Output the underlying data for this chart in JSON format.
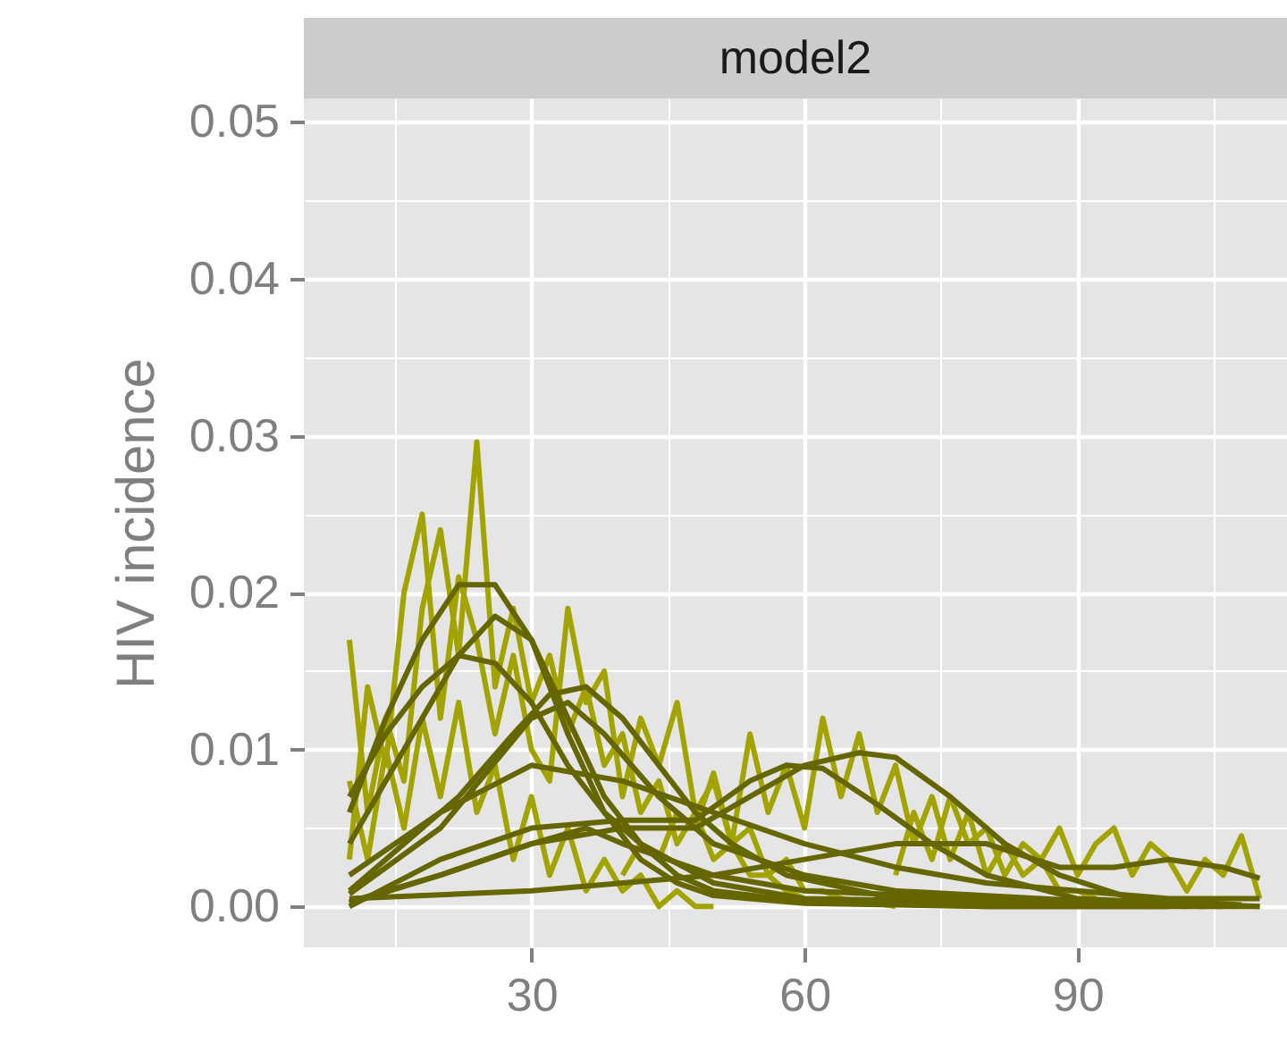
{
  "chart_data": {
    "type": "line",
    "title": "model2",
    "ylabel": "HIV incidence",
    "xlim": [
      5,
      113
    ],
    "ylim": [
      -0.0026,
      0.0515
    ],
    "xticks": [
      {
        "value": 15,
        "label": null
      },
      30,
      {
        "value": 45,
        "label": null
      },
      60,
      {
        "value": 75,
        "label": null
      },
      90,
      {
        "value": 105,
        "label": null
      }
    ],
    "yticks": [
      {
        "value": 0,
        "label": "0.00"
      },
      {
        "value": 0.005,
        "label": null
      },
      {
        "value": 0.01,
        "label": "0.01"
      },
      {
        "value": 0.015,
        "label": null
      },
      {
        "value": 0.02,
        "label": "0.02"
      },
      {
        "value": 0.025,
        "label": null
      },
      {
        "value": 0.03,
        "label": "0.03"
      },
      {
        "value": 0.035,
        "label": null
      },
      {
        "value": 0.04,
        "label": "0.04"
      },
      {
        "value": 0.045,
        "label": null
      },
      {
        "value": 0.05,
        "label": "0.05"
      }
    ],
    "grid": true,
    "legend": false,
    "line_style": "solid",
    "marker": "none",
    "series": [
      {
        "color": "#a3a300",
        "x": [
          10,
          12,
          14,
          16,
          18,
          20,
          22,
          24,
          26,
          28,
          30,
          32,
          34,
          36,
          38,
          40,
          42,
          44,
          46,
          48,
          50,
          52,
          54,
          56,
          58,
          60
        ],
        "values": [
          0.017,
          0.006,
          0.012,
          0.008,
          0.019,
          0.024,
          0.016,
          0.0296,
          0.014,
          0.019,
          0.013,
          0.016,
          0.011,
          0.014,
          0.009,
          0.011,
          0.006,
          0.008,
          0.004,
          0.006,
          0.003,
          0.004,
          0.002,
          0.002,
          0.001,
          0.0005
        ]
      },
      {
        "color": "#a3a300",
        "x": [
          10,
          12,
          14,
          16,
          18,
          20,
          22,
          24,
          26,
          28,
          30,
          32,
          34,
          36,
          38,
          40,
          42,
          44,
          46,
          48,
          50,
          52,
          54,
          56,
          58,
          60,
          62,
          64,
          66,
          68,
          70
        ],
        "values": [
          0.003,
          0.014,
          0.009,
          0.02,
          0.025,
          0.012,
          0.021,
          0.017,
          0.011,
          0.016,
          0.01,
          0.008,
          0.019,
          0.013,
          0.015,
          0.007,
          0.012,
          0.009,
          0.013,
          0.006,
          0.008,
          0.004,
          0.005,
          0.002,
          0.003,
          0.001,
          0.001,
          0.0005,
          0.0003,
          0.0002,
          0
        ]
      },
      {
        "color": "#a3a300",
        "x": [
          40,
          42,
          44,
          46,
          48,
          50,
          52,
          54,
          56,
          58,
          60,
          62,
          64,
          66,
          68,
          70,
          72,
          74,
          76,
          78,
          80,
          82,
          84,
          86,
          88,
          90,
          92
        ],
        "values": [
          0.002,
          0.004,
          0.003,
          0.006,
          0.005,
          0.0085,
          0.004,
          0.011,
          0.006,
          0.009,
          0.005,
          0.012,
          0.007,
          0.011,
          0.006,
          0.009,
          0.004,
          0.007,
          0.003,
          0.006,
          0.002,
          0.004,
          0.002,
          0.003,
          0.001,
          0.001,
          0.0005
        ]
      },
      {
        "color": "#a3a300",
        "x": [
          70,
          72,
          74,
          76,
          78,
          80,
          82,
          84,
          86,
          88,
          90,
          92,
          94,
          96,
          98,
          100,
          102,
          104,
          106,
          108,
          110
        ],
        "values": [
          0.002,
          0.006,
          0.003,
          0.007,
          0.004,
          0.005,
          0.002,
          0.004,
          0.003,
          0.005,
          0.002,
          0.004,
          0.005,
          0.002,
          0.004,
          0.003,
          0.001,
          0.003,
          0.002,
          0.0045,
          0.0005
        ]
      },
      {
        "color": "#a3a300",
        "x": [
          10,
          12,
          14,
          16,
          18,
          20,
          22,
          24,
          26,
          28,
          30,
          32,
          34,
          36,
          38,
          40,
          42,
          44,
          46,
          48,
          50
        ],
        "values": [
          0.008,
          0.003,
          0.01,
          0.005,
          0.012,
          0.007,
          0.013,
          0.006,
          0.009,
          0.003,
          0.007,
          0.002,
          0.005,
          0.001,
          0.003,
          0.001,
          0.002,
          0,
          0.001,
          0,
          0
        ]
      },
      {
        "color": "#666600",
        "x": [
          10,
          14,
          18,
          22,
          26,
          30,
          34,
          38,
          42,
          46,
          50,
          60,
          80,
          110
        ],
        "values": [
          0.006,
          0.012,
          0.017,
          0.0205,
          0.0205,
          0.017,
          0.011,
          0.006,
          0.003,
          0.0015,
          0.0007,
          0.0002,
          0,
          0
        ]
      },
      {
        "color": "#666600",
        "x": [
          10,
          14,
          18,
          22,
          26,
          30,
          34,
          38,
          42,
          46,
          50,
          60,
          80,
          100
        ],
        "values": [
          0.004,
          0.008,
          0.012,
          0.016,
          0.0185,
          0.017,
          0.012,
          0.007,
          0.004,
          0.002,
          0.001,
          0.0003,
          0,
          0
        ]
      },
      {
        "color": "#666600",
        "x": [
          10,
          14,
          18,
          22,
          26,
          30,
          34,
          38,
          42,
          50,
          60,
          106
        ],
        "values": [
          0.007,
          0.011,
          0.014,
          0.016,
          0.0155,
          0.013,
          0.009,
          0.006,
          0.004,
          0.0015,
          0.0005,
          0
        ]
      },
      {
        "color": "#666600",
        "x": [
          10,
          16,
          22,
          28,
          32,
          36,
          40,
          44,
          48,
          52,
          58,
          70,
          104
        ],
        "values": [
          0.001,
          0.004,
          0.007,
          0.011,
          0.0135,
          0.014,
          0.012,
          0.009,
          0.006,
          0.004,
          0.002,
          0.0005,
          0
        ]
      },
      {
        "color": "#666600",
        "x": [
          10,
          20,
          30,
          40,
          48,
          54,
          60,
          66,
          70,
          76,
          82,
          88,
          96,
          108
        ],
        "values": [
          0.0003,
          0.002,
          0.004,
          0.005,
          0.005,
          0.007,
          0.009,
          0.0098,
          0.0095,
          0.007,
          0.004,
          0.002,
          0.0005,
          0.0001
        ]
      },
      {
        "color": "#666600",
        "x": [
          10,
          20,
          30,
          40,
          48,
          54,
          58,
          62,
          68,
          74,
          80,
          90,
          110
        ],
        "values": [
          0,
          0.003,
          0.005,
          0.0055,
          0.0055,
          0.008,
          0.009,
          0.0088,
          0.0065,
          0.004,
          0.002,
          0.0005,
          0
        ]
      },
      {
        "color": "#666600",
        "x": [
          10,
          30,
          50,
          60,
          70,
          80,
          88,
          94,
          100,
          106,
          110
        ],
        "values": [
          0.0005,
          0.001,
          0.002,
          0.003,
          0.004,
          0.004,
          0.0025,
          0.0025,
          0.003,
          0.0025,
          0.0018
        ]
      },
      {
        "color": "#666600",
        "x": [
          10,
          20,
          30,
          36,
          40,
          50,
          60,
          80,
          98
        ],
        "values": [
          0.0002,
          0.002,
          0.004,
          0.005,
          0.004,
          0.002,
          0.001,
          0.0005,
          0
        ]
      },
      {
        "color": "#666600",
        "x": [
          10,
          20,
          30,
          40,
          50,
          60,
          70,
          80,
          90,
          100,
          110
        ],
        "values": [
          0.002,
          0.006,
          0.009,
          0.008,
          0.006,
          0.004,
          0.0025,
          0.0015,
          0.001,
          0.0005,
          0.0005
        ]
      },
      {
        "color": "#666600",
        "x": [
          10,
          20,
          30,
          34,
          38,
          44,
          50,
          60,
          70,
          102
        ],
        "values": [
          0.0008,
          0.005,
          0.012,
          0.013,
          0.011,
          0.007,
          0.004,
          0.002,
          0.001,
          0
        ]
      }
    ]
  }
}
